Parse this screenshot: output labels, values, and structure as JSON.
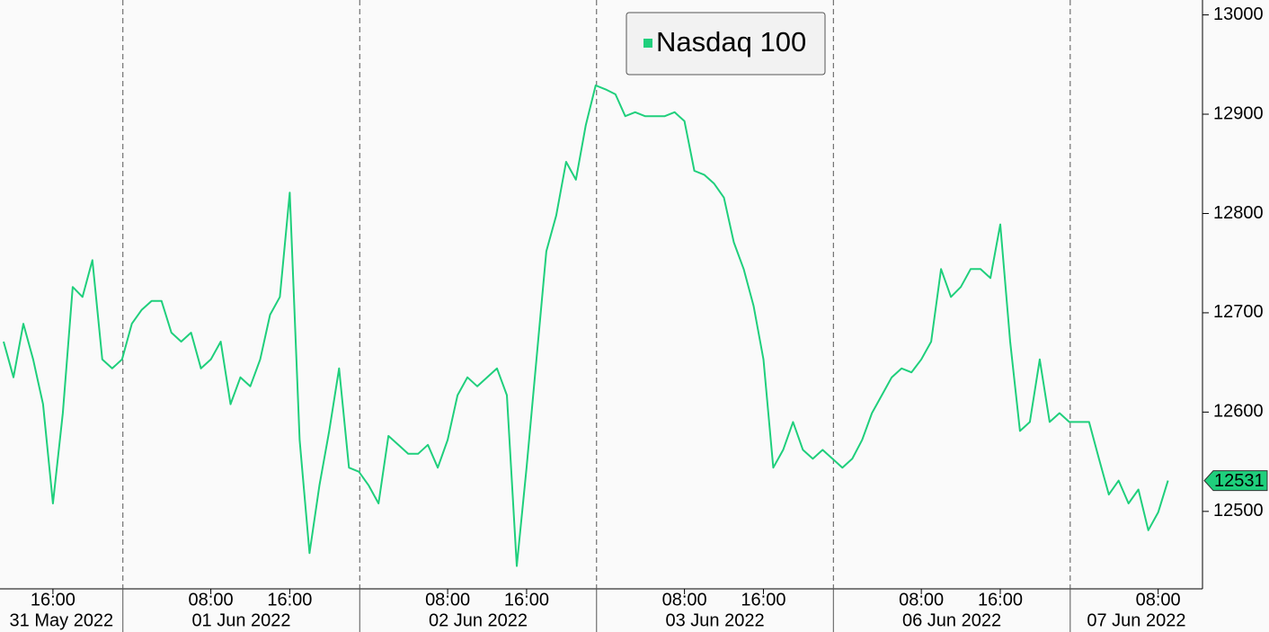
{
  "chart_data": {
    "type": "line",
    "legend": "top-center",
    "categories": [
      "31 May 11:00",
      "31 May 12:00",
      "31 May 13:00",
      "31 May 14:00",
      "31 May 15:00",
      "31 May 16:00",
      "31 May 17:00",
      "31 May 18:00",
      "31 May 19:00",
      "31 May 20:00",
      "31 May 21:00",
      "31 May 22:00",
      "31 May 23:00",
      "01 Jun 00:00",
      "01 Jun 01:00",
      "01 Jun 02:00",
      "01 Jun 03:00",
      "01 Jun 04:00",
      "01 Jun 05:00",
      "01 Jun 06:00",
      "01 Jun 07:00",
      "01 Jun 08:00",
      "01 Jun 09:00",
      "01 Jun 10:00",
      "01 Jun 11:00",
      "01 Jun 12:00",
      "01 Jun 13:00",
      "01 Jun 14:00",
      "01 Jun 15:00",
      "01 Jun 16:00",
      "01 Jun 17:00",
      "01 Jun 18:00",
      "01 Jun 19:00",
      "01 Jun 20:00",
      "01 Jun 21:00",
      "01 Jun 22:00",
      "01 Jun 23:00",
      "02 Jun 00:00",
      "02 Jun 01:00",
      "02 Jun 02:00",
      "02 Jun 03:00",
      "02 Jun 04:00",
      "02 Jun 05:00",
      "02 Jun 06:00",
      "02 Jun 07:00",
      "02 Jun 08:00",
      "02 Jun 09:00",
      "02 Jun 10:00",
      "02 Jun 11:00",
      "02 Jun 12:00",
      "02 Jun 13:00",
      "02 Jun 14:00",
      "02 Jun 15:00",
      "02 Jun 16:00",
      "02 Jun 17:00",
      "02 Jun 18:00",
      "02 Jun 19:00",
      "02 Jun 20:00",
      "02 Jun 21:00",
      "02 Jun 22:00",
      "02 Jun 23:00",
      "03 Jun 00:00",
      "03 Jun 01:00",
      "03 Jun 02:00",
      "03 Jun 03:00",
      "03 Jun 04:00",
      "03 Jun 05:00",
      "03 Jun 06:00",
      "03 Jun 07:00",
      "03 Jun 08:00",
      "03 Jun 09:00",
      "03 Jun 10:00",
      "03 Jun 11:00",
      "03 Jun 12:00",
      "03 Jun 13:00",
      "03 Jun 14:00",
      "03 Jun 15:00",
      "03 Jun 16:00",
      "03 Jun 17:00",
      "03 Jun 18:00",
      "03 Jun 19:00",
      "03 Jun 20:00",
      "03 Jun 21:00",
      "03 Jun 22:00",
      "03 Jun 23:00",
      "06 Jun 00:00",
      "06 Jun 01:00",
      "06 Jun 02:00",
      "06 Jun 03:00",
      "06 Jun 04:00",
      "06 Jun 05:00",
      "06 Jun 06:00",
      "06 Jun 07:00",
      "06 Jun 08:00",
      "06 Jun 09:00",
      "06 Jun 10:00",
      "06 Jun 11:00",
      "06 Jun 12:00",
      "06 Jun 13:00",
      "06 Jun 14:00",
      "06 Jun 15:00",
      "06 Jun 16:00",
      "06 Jun 17:00",
      "06 Jun 18:00",
      "06 Jun 19:00",
      "06 Jun 20:00",
      "06 Jun 21:00",
      "06 Jun 22:00",
      "06 Jun 23:00",
      "07 Jun 00:00",
      "07 Jun 01:00",
      "07 Jun 02:00",
      "07 Jun 03:00",
      "07 Jun 04:00",
      "07 Jun 05:00",
      "07 Jun 06:00",
      "07 Jun 07:00",
      "07 Jun 08:00",
      "07 Jun 09:00"
    ],
    "dates": [
      "31 May 2022",
      "01 Jun 2022",
      "02 Jun 2022",
      "03 Jun 2022",
      "06 Jun 2022",
      "07 Jun 2022"
    ],
    "series": [
      {
        "name": "Nasdaq 100",
        "color": "#1fcf7c",
        "values": [
          12671,
          12635,
          12689,
          12653,
          12608,
          12508,
          12599,
          12726,
          12716,
          12753,
          12653,
          12644,
          12653,
          12689,
          12703,
          12712,
          12712,
          12680,
          12671,
          12680,
          12644,
          12653,
          12671,
          12608,
          12635,
          12626,
          12653,
          12698,
          12716,
          12821,
          12572,
          12458,
          12526,
          12581,
          12644,
          12544,
          12540,
          12526,
          12508,
          12576,
          12567,
          12558,
          12558,
          12567,
          12544,
          12572,
          12617,
          12635,
          12626,
          12635,
          12644,
          12617,
          12445,
          12544,
          12653,
          12762,
          12798,
          12852,
          12834,
          12889,
          12929,
          12925,
          12920,
          12898,
          12902,
          12898,
          12898,
          12898,
          12902,
          12893,
          12843,
          12839,
          12830,
          12816,
          12771,
          12744,
          12707,
          12653,
          12544,
          12562,
          12590,
          12562,
          12553,
          12562,
          12553,
          12544,
          12553,
          12572,
          12599,
          12617,
          12635,
          12644,
          12640,
          12653,
          12671,
          12744,
          12716,
          12726,
          12744,
          12744,
          12735,
          12789,
          12671,
          12581,
          12590,
          12653,
          12590,
          12599,
          12590,
          12590,
          12590,
          12553,
          12517,
          12531,
          12508,
          12522,
          12481,
          12499,
          12531
        ]
      }
    ],
    "xticks": [
      {
        "value": "31 May 16:00",
        "label": "16:00"
      },
      {
        "value": "01 Jun 08:00",
        "label": "08:00"
      },
      {
        "value": "01 Jun 16:00",
        "label": "16:00"
      },
      {
        "value": "02 Jun 08:00",
        "label": "08:00"
      },
      {
        "value": "02 Jun 16:00",
        "label": "16:00"
      },
      {
        "value": "03 Jun 08:00",
        "label": "08:00"
      },
      {
        "value": "03 Jun 16:00",
        "label": "16:00"
      },
      {
        "value": "06 Jun 08:00",
        "label": "08:00"
      },
      {
        "value": "06 Jun 16:00",
        "label": "16:00"
      },
      {
        "value": "07 Jun 08:00",
        "label": "08:00"
      }
    ],
    "ylim": [
      12422,
      13015
    ],
    "yticks": [
      12500,
      12600,
      12700,
      12800,
      12900,
      13000
    ]
  }
}
